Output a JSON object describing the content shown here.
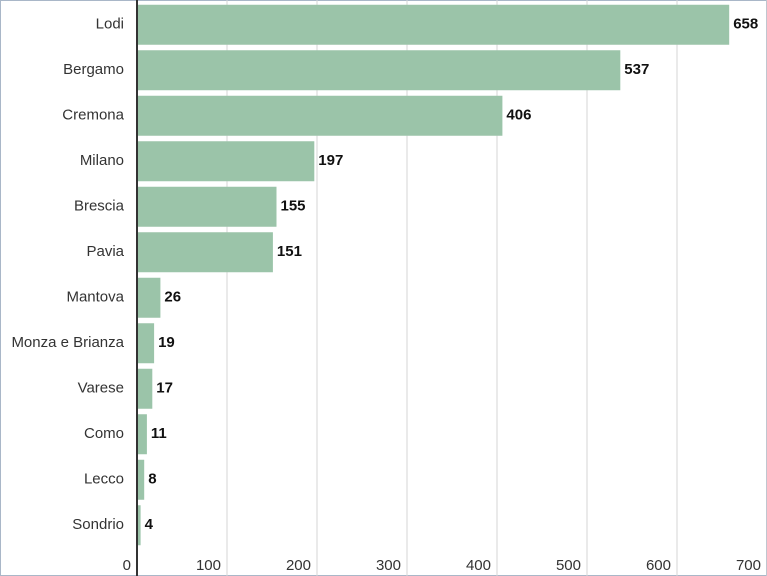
{
  "chart_data": {
    "type": "bar",
    "orientation": "horizontal",
    "categories": [
      "Lodi",
      "Bergamo",
      "Cremona",
      "Milano",
      "Brescia",
      "Pavia",
      "Mantova",
      "Monza e Brianza",
      "Varese",
      "Como",
      "Lecco",
      "Sondrio"
    ],
    "values": [
      658,
      537,
      406,
      197,
      155,
      151,
      26,
      19,
      17,
      11,
      8,
      4
    ],
    "color": "#9bc4a9",
    "xlim": [
      0,
      700
    ],
    "xticks": [
      0,
      100,
      200,
      300,
      400,
      500,
      600,
      700
    ],
    "grid": true
  }
}
